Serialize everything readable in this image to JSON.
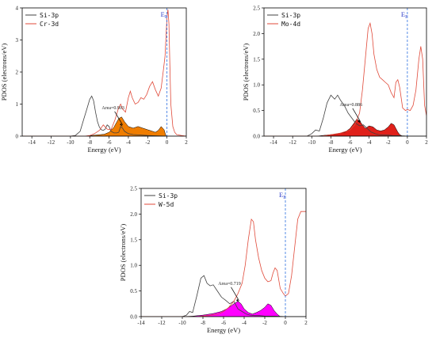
{
  "chart_data": [
    {
      "type": "line",
      "xlabel": "Energy (eV)",
      "ylabel": "PDOS (electrons/eV)",
      "xlim": [
        -15,
        2
      ],
      "ylim": [
        0,
        4
      ],
      "xticks": [
        -14,
        -12,
        -10,
        -8,
        -6,
        -4,
        -2,
        0,
        2
      ],
      "yticks": [
        0,
        1,
        2,
        3,
        4
      ],
      "fermi_label": "E",
      "fermi_sub": "F",
      "fermi_x": 0,
      "annotation": "Area=0.903",
      "annotation_point": [
        -4.6,
        0.3
      ],
      "legend_position": "top-left",
      "fill_color": "#ef7d00",
      "series": [
        {
          "name": "Si-3p",
          "color": "#404040",
          "x": [
            -15,
            -10,
            -9.5,
            -9,
            -8.6,
            -8.3,
            -8.0,
            -7.8,
            -7.6,
            -7.4,
            -7.2,
            -7.0,
            -6.8,
            -6.6,
            -6.4,
            -6.2,
            -6.0,
            -5.8,
            -5.5,
            -5.2,
            -5.0,
            -4.8,
            -4.6,
            -4.4,
            -4.0,
            -3.5,
            -3.0,
            -2.5,
            -2.0,
            -1.0,
            0,
            1,
            2
          ],
          "y": [
            0,
            0,
            0.02,
            0.15,
            0.55,
            0.85,
            1.15,
            1.25,
            1.1,
            0.75,
            0.45,
            0.28,
            0.2,
            0.18,
            0.22,
            0.35,
            0.3,
            0.15,
            0.1,
            0.1,
            0.12,
            0.3,
            0.25,
            0.15,
            0.08,
            0.05,
            0.04,
            0.03,
            0.02,
            0.01,
            0,
            0,
            0
          ]
        },
        {
          "name": "Cr-3d",
          "color": "#e04a3a",
          "x": [
            -15,
            -8.5,
            -8,
            -7.5,
            -7,
            -6.6,
            -6.2,
            -5.8,
            -5.4,
            -5.0,
            -4.8,
            -4.6,
            -4.3,
            -4.0,
            -3.8,
            -3.6,
            -3.3,
            -3.0,
            -2.7,
            -2.4,
            -2.1,
            -1.8,
            -1.5,
            -1.2,
            -0.9,
            -0.6,
            -0.4,
            -0.2,
            0,
            0.1,
            0.2,
            0.3,
            0.4,
            0.6,
            0.8,
            1.0,
            1.5,
            2
          ],
          "y": [
            0,
            0,
            0.02,
            0.08,
            0.18,
            0.35,
            0.22,
            0.2,
            0.5,
            0.9,
            1.0,
            0.85,
            0.75,
            1.2,
            1.4,
            1.2,
            1.0,
            1.05,
            1.2,
            1.15,
            1.3,
            1.55,
            1.7,
            1.45,
            1.25,
            1.5,
            2.0,
            2.5,
            3.7,
            3.95,
            3.5,
            2.2,
            1.0,
            0.3,
            0.12,
            0.05,
            0.02,
            0
          ]
        }
      ],
      "fill": {
        "x": [
          -8.5,
          -7.5,
          -6.5,
          -6.0,
          -5.5,
          -5.0,
          -4.7,
          -4.4,
          -4.0,
          -3.5,
          -3.0,
          -2.5,
          -2.0,
          -1.5,
          -1.2,
          -0.9,
          -0.6,
          -0.3,
          -0.1
        ],
        "y": [
          0,
          0.03,
          0.06,
          0.12,
          0.28,
          0.55,
          0.6,
          0.45,
          0.3,
          0.25,
          0.3,
          0.25,
          0.2,
          0.15,
          0.12,
          0.18,
          0.3,
          0.2,
          0
        ]
      }
    },
    {
      "type": "line",
      "xlabel": "Energy (eV)",
      "ylabel": "PDOS (electrons/eV)",
      "xlim": [
        -15,
        2
      ],
      "ylim": [
        0,
        2.5
      ],
      "xticks": [
        -14,
        -12,
        -10,
        -8,
        -6,
        -4,
        -2,
        0,
        2
      ],
      "yticks": [
        0,
        0.5,
        1.0,
        1.5,
        2.0,
        2.5
      ],
      "fermi_label": "E",
      "fermi_sub": "F",
      "fermi_x": 0,
      "annotation": "Area=0.886",
      "annotation_point": [
        -4.9,
        0.25
      ],
      "legend_position": "top-left",
      "fill_color": "#e0201a",
      "series": [
        {
          "name": "Si-3p",
          "color": "#404040",
          "x": [
            -15,
            -10.5,
            -10,
            -9.6,
            -9.2,
            -8.8,
            -8.4,
            -8.0,
            -7.6,
            -7.3,
            -7.0,
            -6.6,
            -6.2,
            -5.8,
            -5.4,
            -5.0,
            -4.6,
            -4.2,
            -3.8,
            -3.4,
            -3.0,
            -2.5,
            -2.0,
            -1.5,
            -1.0,
            0,
            2
          ],
          "y": [
            0,
            0,
            0.05,
            0.12,
            0.1,
            0.35,
            0.65,
            0.8,
            0.72,
            0.8,
            0.7,
            0.6,
            0.45,
            0.35,
            0.25,
            0.2,
            0.22,
            0.15,
            0.08,
            0.05,
            0.03,
            0.02,
            0.02,
            0.01,
            0.01,
            0,
            0
          ]
        },
        {
          "name": "Mo-4d",
          "color": "#e04a3a",
          "x": [
            -15,
            -9,
            -8,
            -7,
            -6,
            -5.5,
            -5.0,
            -4.7,
            -4.4,
            -4.1,
            -3.9,
            -3.7,
            -3.5,
            -3.2,
            -2.9,
            -2.6,
            -2.3,
            -2.0,
            -1.7,
            -1.4,
            -1.2,
            -1.0,
            -0.8,
            -0.5,
            -0.2,
            0,
            0.3,
            0.6,
            0.9,
            1.2,
            1.4,
            1.6,
            1.8,
            2
          ],
          "y": [
            0,
            0,
            0.03,
            0.06,
            0.12,
            0.22,
            0.45,
            0.9,
            1.5,
            2.1,
            2.2,
            2.0,
            1.6,
            1.3,
            1.15,
            1.1,
            1.05,
            1.0,
            0.85,
            0.75,
            1.05,
            1.1,
            0.95,
            0.55,
            0.5,
            0.52,
            0.5,
            0.6,
            0.9,
            1.5,
            1.75,
            1.5,
            0.6,
            0.4
          ]
        }
      ],
      "fill": {
        "x": [
          -9.5,
          -8.5,
          -7.5,
          -6.5,
          -6.0,
          -5.6,
          -5.3,
          -5.0,
          -4.7,
          -4.4,
          -4.0,
          -3.6,
          -3.2,
          -2.8,
          -2.4,
          -2.0,
          -1.7,
          -1.4,
          -1.2,
          -1.0,
          -0.8,
          -0.5
        ],
        "y": [
          0,
          0.02,
          0.04,
          0.08,
          0.15,
          0.25,
          0.33,
          0.3,
          0.22,
          0.15,
          0.2,
          0.18,
          0.12,
          0.1,
          0.12,
          0.18,
          0.25,
          0.22,
          0.15,
          0.08,
          0.03,
          0
        ]
      }
    },
    {
      "type": "line",
      "xlabel": "Energy (eV)",
      "ylabel": "PDOS (electrons/eV)",
      "xlim": [
        -14,
        2
      ],
      "ylim": [
        0,
        2.5
      ],
      "xticks": [
        -14,
        -12,
        -10,
        -8,
        -6,
        -4,
        -2,
        0,
        2
      ],
      "yticks": [
        0,
        0.5,
        1.0,
        1.5,
        2.0,
        2.5
      ],
      "fermi_label": "E",
      "fermi_sub": "F",
      "fermi_x": 0,
      "annotation": "Area=0.719",
      "annotation_point": [
        -4.5,
        0.28
      ],
      "legend_position": "top-left",
      "fill_color": "#ff00ff",
      "series": [
        {
          "name": "Si-3p",
          "color": "#404040",
          "x": [
            -14,
            -10,
            -9.6,
            -9.3,
            -9.0,
            -8.6,
            -8.2,
            -7.9,
            -7.6,
            -7.3,
            -7.0,
            -6.6,
            -6.2,
            -5.8,
            -5.4,
            -5.0,
            -4.6,
            -4.2,
            -3.8,
            -3.4,
            -3.0,
            -2.5,
            -2.0,
            -1.0,
            0,
            2
          ],
          "y": [
            0,
            0,
            0.03,
            0.1,
            0.08,
            0.4,
            0.75,
            0.8,
            0.65,
            0.6,
            0.62,
            0.5,
            0.38,
            0.32,
            0.25,
            0.3,
            0.15,
            0.1,
            0.05,
            0.03,
            0.02,
            0.02,
            0.01,
            0.01,
            0,
            0
          ]
        },
        {
          "name": "W-5d",
          "color": "#e04a3a",
          "x": [
            -14,
            -8.5,
            -7.5,
            -6.5,
            -6.0,
            -5.5,
            -5.0,
            -4.6,
            -4.2,
            -3.9,
            -3.6,
            -3.3,
            -3.1,
            -2.9,
            -2.6,
            -2.3,
            -2.0,
            -1.7,
            -1.4,
            -1.2,
            -1.0,
            -0.8,
            -0.5,
            -0.2,
            0,
            0.3,
            0.6,
            0.9,
            1.2,
            1.5,
            1.8,
            2
          ],
          "y": [
            0,
            0,
            0.02,
            0.05,
            0.1,
            0.18,
            0.3,
            0.45,
            0.65,
            1.0,
            1.5,
            1.9,
            1.85,
            1.5,
            1.15,
            0.9,
            0.75,
            0.68,
            0.7,
            0.85,
            0.95,
            0.9,
            0.55,
            0.45,
            0.4,
            0.45,
            0.8,
            1.35,
            1.9,
            2.05,
            2.05,
            2.05
          ]
        }
      ],
      "fill": {
        "x": [
          -10,
          -9,
          -8,
          -7,
          -6.2,
          -5.6,
          -5.0,
          -4.6,
          -4.3,
          -4.0,
          -3.6,
          -3.2,
          -2.8,
          -2.4,
          -2.0,
          -1.7,
          -1.4,
          -1.1,
          -0.8,
          -0.5
        ],
        "y": [
          0,
          0.01,
          0.03,
          0.06,
          0.1,
          0.16,
          0.25,
          0.3,
          0.25,
          0.15,
          0.08,
          0.05,
          0.08,
          0.12,
          0.18,
          0.25,
          0.22,
          0.12,
          0.05,
          0
        ]
      }
    }
  ]
}
